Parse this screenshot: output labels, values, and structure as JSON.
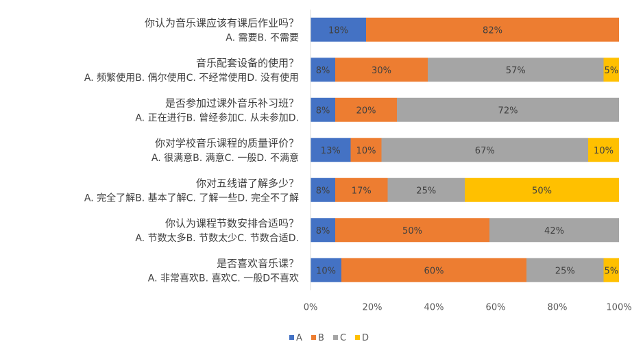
{
  "chart_data": {
    "type": "bar",
    "orientation": "horizontal",
    "stacked": "percent",
    "title": "",
    "xlabel": "",
    "ylabel": "",
    "xlim": [
      0,
      100
    ],
    "x_ticks": [
      "0%",
      "20%",
      "40%",
      "60%",
      "80%",
      "100%"
    ],
    "grid": false,
    "legend_position": "bottom",
    "categories": [
      {
        "question": "你认为音乐课应该有课后作业吗？",
        "options": "A. 需要B. 不需要"
      },
      {
        "question": "音乐配套设备的使用？",
        "options": "A. 频繁使用B. 偶尔使用C. 不经常使用D. 没有使用"
      },
      {
        "question": "是否参加过课外音乐补习班？",
        "options": "A. 正在进行B. 曾经参加C. 从未参加D."
      },
      {
        "question": "你对学校音乐课程的质量评价？",
        "options": "A. 很满意B. 满意C. 一般D. 不满意"
      },
      {
        "question": "你对五线谱了解多少？",
        "options": "A. 完全了解B. 基本了解C. 了解一些D. 完全不了解"
      },
      {
        "question": "你认为课程节数安排合适吗？",
        "options": "A. 节数太多B. 节数太少C. 节数合适D."
      },
      {
        "question": "是否喜欢音乐课？",
        "options": "A. 非常喜欢B. 喜欢C. 一般D不喜欢"
      }
    ],
    "series": [
      {
        "name": "A",
        "color": "#4472C4",
        "values": [
          18,
          8,
          8,
          13,
          8,
          8,
          10
        ],
        "labels": [
          "18%",
          "8%",
          "8%",
          "13%",
          "8%",
          "8%",
          "10%"
        ]
      },
      {
        "name": "B",
        "color": "#ED7D31",
        "values": [
          82,
          30,
          20,
          10,
          17,
          50,
          60
        ],
        "labels": [
          "82%",
          "30%",
          "20%",
          "10%",
          "17%",
          "50%",
          "60%"
        ]
      },
      {
        "name": "C",
        "color": "#A5A5A5",
        "values": [
          0,
          57,
          72,
          67,
          25,
          42,
          25
        ],
        "labels": [
          "",
          "57%",
          "72%",
          "67%",
          "25%",
          "42%",
          "25%"
        ]
      },
      {
        "name": "D",
        "color": "#FFC000",
        "values": [
          0,
          5,
          0,
          10,
          50,
          0,
          5
        ],
        "labels": [
          "",
          "5%",
          "",
          "10%",
          "50%",
          "",
          "5%"
        ]
      }
    ]
  }
}
